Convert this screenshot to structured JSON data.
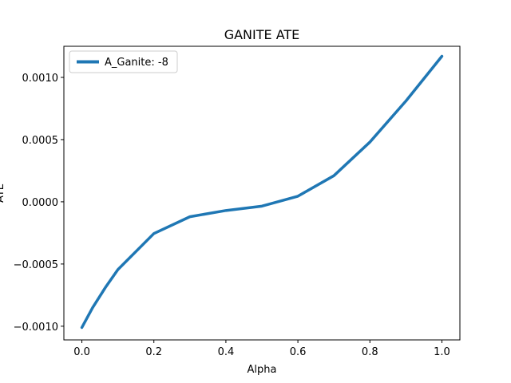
{
  "chart_data": {
    "type": "line",
    "title": "GANITE ATE",
    "xlabel": "Alpha",
    "ylabel": "ATE",
    "xlim": [
      -0.05,
      1.05
    ],
    "ylim": [
      -0.00111,
      0.00125
    ],
    "xticks": [
      0.0,
      0.2,
      0.4,
      0.6,
      0.8,
      1.0
    ],
    "xtick_labels": [
      "0.0",
      "0.2",
      "0.4",
      "0.6",
      "0.8",
      "1.0"
    ],
    "yticks": [
      -0.001,
      -0.0005,
      0.0,
      0.0005,
      0.001
    ],
    "ytick_labels": [
      "−0.0010",
      "−0.0005",
      "0.0000",
      "0.0005",
      "0.0010"
    ],
    "grid": false,
    "legend_position": "top-left",
    "series": [
      {
        "name": "A_Ganite: -8",
        "color": "#1f77b4",
        "x": [
          0.0,
          0.03,
          0.065,
          0.1,
          0.2,
          0.3,
          0.4,
          0.5,
          0.6,
          0.7,
          0.8,
          0.9,
          1.0
        ],
        "y": [
          -0.00101,
          -0.00085,
          -0.00069,
          -0.000545,
          -0.000255,
          -0.00012,
          -7e-05,
          -3.5e-05,
          4.5e-05,
          0.00021,
          0.00048,
          0.00081,
          0.00117
        ]
      }
    ]
  }
}
